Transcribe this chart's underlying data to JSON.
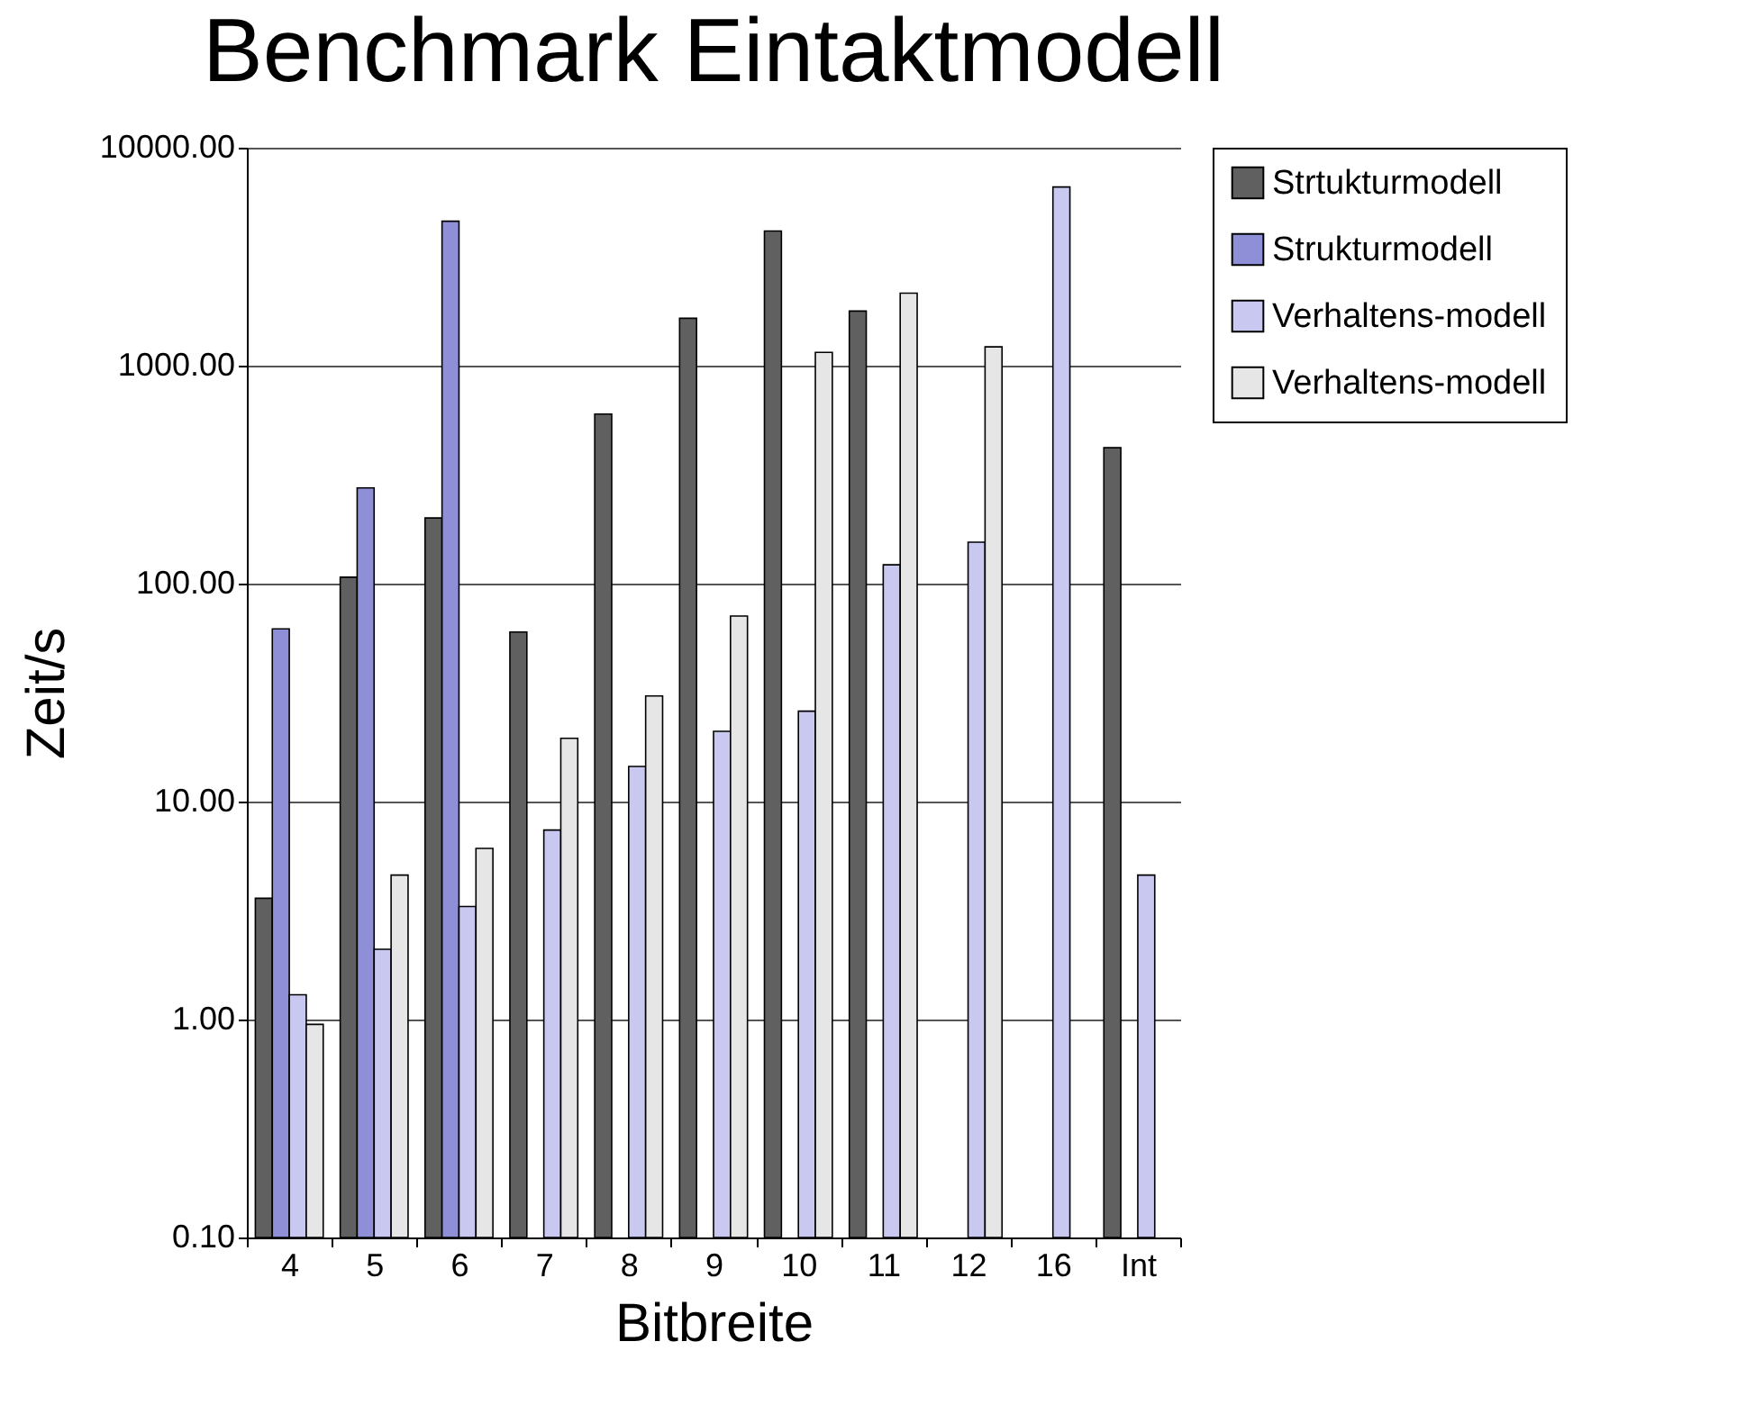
{
  "chart_data": {
    "type": "bar",
    "title": "Benchmark Eintaktmodell",
    "xlabel": "Bitbreite",
    "ylabel": "Zeit/s",
    "categories": [
      "4",
      "5",
      "6",
      "7",
      "8",
      "9",
      "10",
      "11",
      "12",
      "16",
      "Int"
    ],
    "series": [
      {
        "name": "Strtukturmodell",
        "color": "#606060",
        "values": [
          3.6,
          107,
          200,
          60,
          600,
          1650,
          4150,
          1780,
          null,
          null,
          420
        ]
      },
      {
        "name": "Strukturmodell",
        "color": "#8f8fd8",
        "values": [
          62,
          275,
          4600,
          null,
          null,
          null,
          null,
          null,
          null,
          null,
          null
        ]
      },
      {
        "name": "Verhaltens-modell",
        "color": "#c8c8f0",
        "values": [
          1.3,
          2.1,
          3.3,
          7.4,
          14.5,
          21,
          26,
          122,
          155,
          6600,
          4.6
        ]
      },
      {
        "name": "Verhaltens-modell",
        "color": "#e6e6e6",
        "values": [
          0.95,
          4.6,
          6.1,
          19.5,
          30.5,
          71,
          1150,
          2150,
          1220,
          null,
          null
        ]
      }
    ],
    "log": "y",
    "ylim": [
      0.1,
      10000
    ],
    "yticks": [
      {
        "value": 0.1,
        "label": "0.10"
      },
      {
        "value": 1,
        "label": "1.00"
      },
      {
        "value": 10,
        "label": "10.00"
      },
      {
        "value": 100,
        "label": "100.00"
      },
      {
        "value": 1000,
        "label": "1000.00"
      },
      {
        "value": 10000,
        "label": "10000.00"
      }
    ],
    "grid": "y",
    "legend": "right"
  }
}
